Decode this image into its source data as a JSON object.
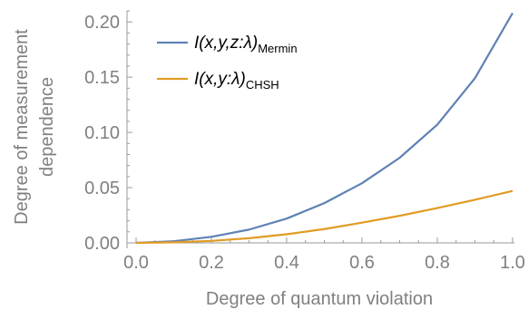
{
  "chart_data": {
    "type": "line",
    "xlabel": "Degree of quantum violation",
    "ylabel": [
      "Degree of measurement",
      "dependence"
    ],
    "xlim": [
      0,
      1
    ],
    "ylim": [
      0,
      0.21
    ],
    "x_ticks": [
      "0.0",
      "0.2",
      "0.4",
      "0.6",
      "0.8",
      "1.0"
    ],
    "x_tick_values": [
      0,
      0.2,
      0.4,
      0.6,
      0.8,
      1.0
    ],
    "y_ticks": [
      "0.00",
      "0.05",
      "0.10",
      "0.15",
      "0.20"
    ],
    "y_tick_values": [
      0,
      0.05,
      0.1,
      0.15,
      0.2
    ],
    "grid": false,
    "legend_position": "top-left",
    "series": [
      {
        "name_main": "I(x,y,z:λ)",
        "name_sub": "Mermin",
        "color": "#5e81b5",
        "x": [
          0.0,
          0.1,
          0.2,
          0.3,
          0.4,
          0.5,
          0.6,
          0.7,
          0.8,
          0.9,
          1.0
        ],
        "y": [
          0.0,
          0.0015,
          0.0055,
          0.012,
          0.022,
          0.036,
          0.054,
          0.077,
          0.107,
          0.149,
          0.208
        ]
      },
      {
        "name_main": "I(x,y:λ)",
        "name_sub": "CHSH",
        "color": "#e19c24",
        "x": [
          0.0,
          0.1,
          0.2,
          0.3,
          0.4,
          0.5,
          0.6,
          0.7,
          0.8,
          0.9,
          1.0
        ],
        "y": [
          0.0,
          0.0005,
          0.0018,
          0.0042,
          0.0078,
          0.0125,
          0.0183,
          0.0245,
          0.0315,
          0.039,
          0.047
        ]
      }
    ]
  }
}
